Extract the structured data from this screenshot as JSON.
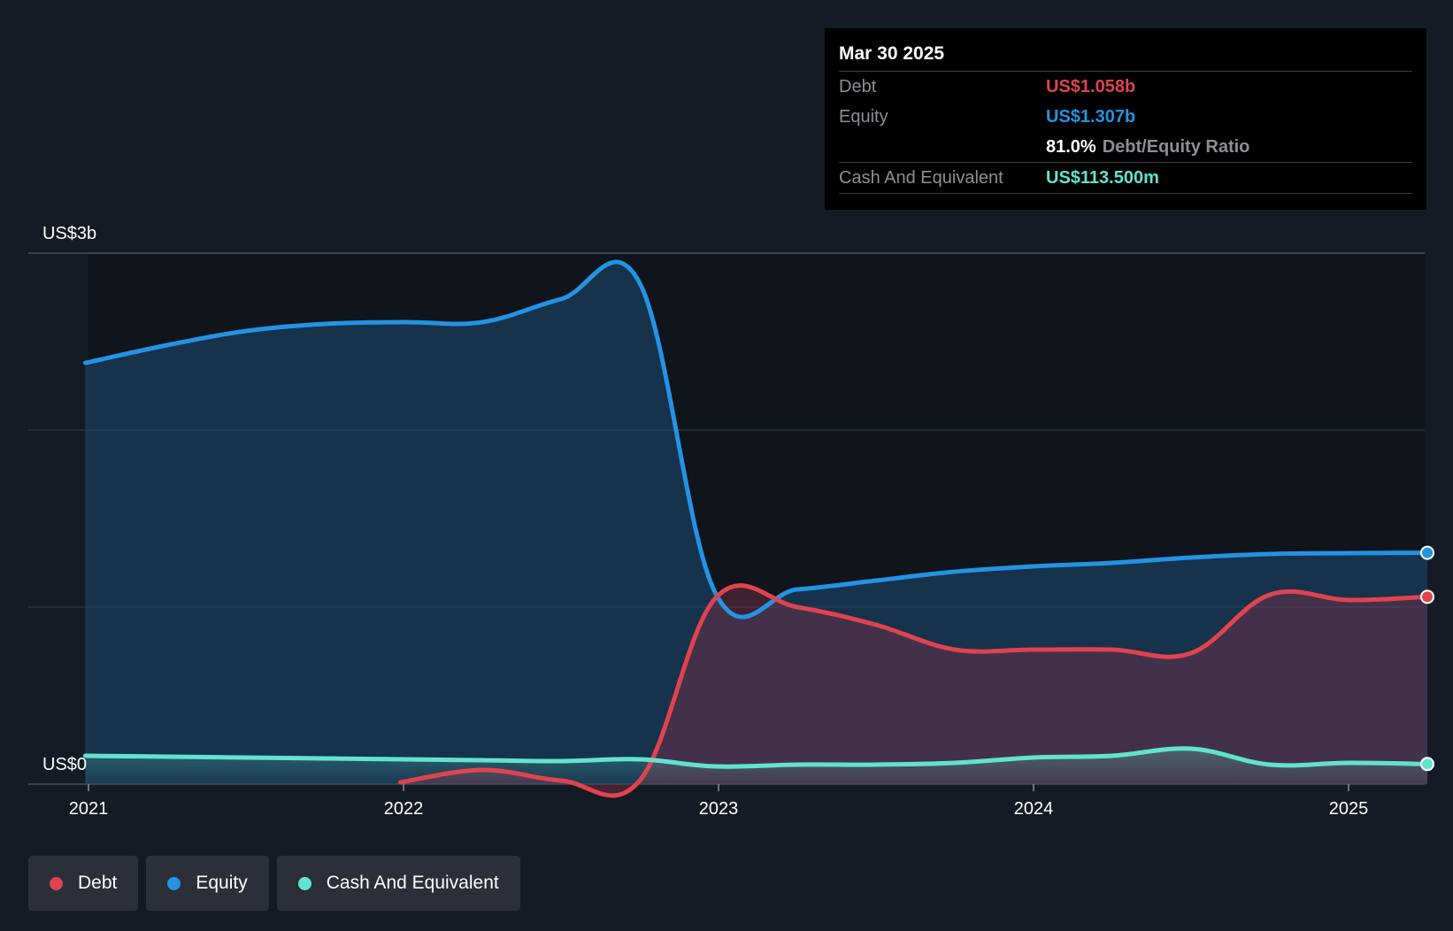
{
  "chart_data": {
    "type": "area",
    "y_unit_labels": {
      "top": "US$3b",
      "bottom": "US$0"
    },
    "ylim": [
      0,
      3.0
    ],
    "xlim": [
      2021.0,
      2025.25
    ],
    "x_tick_labels": [
      "2021",
      "2022",
      "2023",
      "2024",
      "2025"
    ],
    "x_ticks": [
      2021,
      2022,
      2023,
      2024,
      2025
    ],
    "gridlines": [
      0,
      1.0,
      2.0,
      3.0
    ],
    "series": [
      {
        "name": "Debt",
        "color": "#e0434f",
        "points": [
          [
            2021.99,
            0.01
          ],
          [
            2022.25,
            0.08
          ],
          [
            2022.5,
            0.02
          ],
          [
            2022.75,
            0.02
          ],
          [
            2022.99,
            1.05
          ],
          [
            2023.25,
            1.0
          ],
          [
            2023.5,
            0.9
          ],
          [
            2023.75,
            0.76
          ],
          [
            2024.0,
            0.76
          ],
          [
            2024.25,
            0.76
          ],
          [
            2024.5,
            0.74
          ],
          [
            2024.75,
            1.07
          ],
          [
            2025.0,
            1.04
          ],
          [
            2025.25,
            1.058
          ]
        ]
      },
      {
        "name": "Equity",
        "color": "#2393e4",
        "points": [
          [
            2020.99,
            2.38
          ],
          [
            2021.25,
            2.48
          ],
          [
            2021.5,
            2.56
          ],
          [
            2021.75,
            2.6
          ],
          [
            2022.0,
            2.61
          ],
          [
            2022.25,
            2.61
          ],
          [
            2022.5,
            2.74
          ],
          [
            2022.75,
            2.83
          ],
          [
            2022.99,
            1.08
          ],
          [
            2023.25,
            1.1
          ],
          [
            2023.5,
            1.15
          ],
          [
            2023.75,
            1.2
          ],
          [
            2024.0,
            1.23
          ],
          [
            2024.25,
            1.25
          ],
          [
            2024.5,
            1.28
          ],
          [
            2024.75,
            1.3
          ],
          [
            2025.0,
            1.305
          ],
          [
            2025.25,
            1.307
          ]
        ]
      },
      {
        "name": "Cash And Equivalent",
        "color": "#62e3cf",
        "points": [
          [
            2020.99,
            0.16
          ],
          [
            2021.25,
            0.155
          ],
          [
            2021.5,
            0.15
          ],
          [
            2021.75,
            0.145
          ],
          [
            2022.0,
            0.14
          ],
          [
            2022.25,
            0.135
          ],
          [
            2022.5,
            0.13
          ],
          [
            2022.75,
            0.14
          ],
          [
            2022.99,
            0.1
          ],
          [
            2023.25,
            0.11
          ],
          [
            2023.5,
            0.11
          ],
          [
            2023.75,
            0.12
          ],
          [
            2024.0,
            0.15
          ],
          [
            2024.25,
            0.16
          ],
          [
            2024.5,
            0.2
          ],
          [
            2024.75,
            0.11
          ],
          [
            2025.0,
            0.12
          ],
          [
            2025.25,
            0.1135
          ]
        ]
      }
    ]
  },
  "tooltip": {
    "date": "Mar 30 2025",
    "debt_label": "Debt",
    "debt_value": "US$1.058b",
    "equity_label": "Equity",
    "equity_value": "US$1.307b",
    "ratio_value": "81.0%",
    "ratio_label": "Debt/Equity Ratio",
    "cash_label": "Cash And Equivalent",
    "cash_value": "US$113.500m"
  },
  "legend": [
    {
      "label": "Debt",
      "color": "#e0434f"
    },
    {
      "label": "Equity",
      "color": "#2393e4"
    },
    {
      "label": "Cash And Equivalent",
      "color": "#62e3cf"
    }
  ]
}
